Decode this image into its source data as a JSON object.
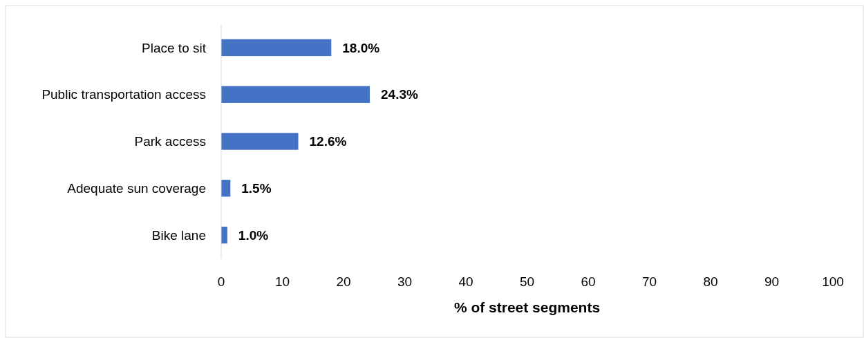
{
  "chart_data": {
    "type": "bar",
    "orientation": "horizontal",
    "xlabel": "% of street segments",
    "categories": [
      "Place to sit",
      "Public transportation access",
      "Park access",
      "Adequate sun coverage",
      "Bike lane"
    ],
    "values": [
      18.0,
      24.3,
      12.6,
      1.5,
      1.0
    ],
    "color": "#4472c4",
    "value_labels": [
      "18.0%",
      "24.3%",
      "12.6%",
      "1.5%",
      "1.0%"
    ],
    "xlim": [
      0,
      100
    ],
    "xticks": [
      0,
      10,
      20,
      30,
      40,
      50,
      60,
      70,
      80,
      90,
      100
    ],
    "grid": false
  }
}
